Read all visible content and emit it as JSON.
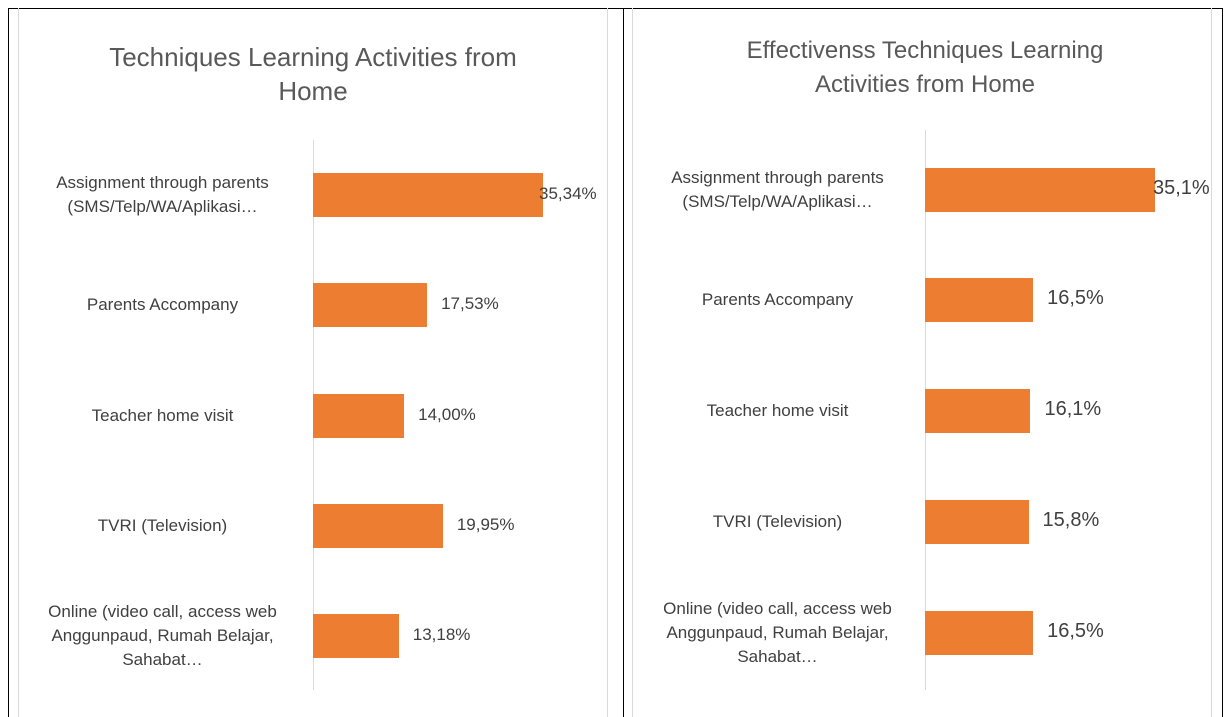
{
  "chart_data": [
    {
      "type": "bar",
      "orientation": "horizontal",
      "title": "Techniques Learning Activities from Home",
      "categories": [
        "Assignment through parents (SMS/Telp/WA/Aplikasi…",
        "Parents Accompany",
        "Teacher home visit",
        "TVRI (Television)",
        "Online (video call, access web Anggunpaud, Rumah Belajar, Sahabat…"
      ],
      "values": [
        35.34,
        17.53,
        14.0,
        19.95,
        13.18
      ],
      "value_labels": [
        "35,34%",
        "17,53%",
        "14,00%",
        "19,95%",
        "13,18%"
      ],
      "color": "#ed7d31"
    },
    {
      "type": "bar",
      "orientation": "horizontal",
      "title": "Effectivenss Techniques Learning Activities from Home",
      "categories": [
        "Assignment through parents (SMS/Telp/WA/Aplikasi…",
        "Parents Accompany",
        "Teacher home visit",
        "TVRI (Television)",
        "Online (video call, access web Anggunpaud, Rumah Belajar, Sahabat…"
      ],
      "values": [
        35.1,
        16.5,
        16.1,
        15.8,
        16.5
      ],
      "value_labels": [
        "35,1%",
        "16,5%",
        "16,1%",
        "15,8%",
        "16,5%"
      ],
      "color": "#ed7d31"
    }
  ]
}
